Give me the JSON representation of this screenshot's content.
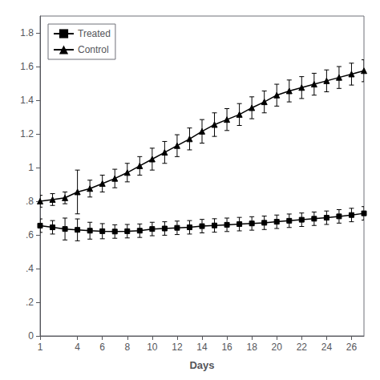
{
  "chart_data": {
    "type": "line",
    "xlabel": "Days",
    "x": [
      1,
      2,
      3,
      4,
      5,
      6,
      7,
      8,
      9,
      10,
      11,
      12,
      13,
      14,
      15,
      16,
      17,
      18,
      19,
      20,
      21,
      22,
      23,
      24,
      25,
      26,
      27
    ],
    "series": [
      {
        "name": "Treated",
        "color": "#000000",
        "marker": "square",
        "values": [
          0.655,
          0.645,
          0.635,
          0.63,
          0.625,
          0.622,
          0.62,
          0.622,
          0.625,
          0.635,
          0.638,
          0.642,
          0.645,
          0.652,
          0.656,
          0.66,
          0.664,
          0.668,
          0.672,
          0.678,
          0.684,
          0.69,
          0.696,
          0.702,
          0.71,
          0.718,
          0.728
        ],
        "error": [
          0.04,
          0.04,
          0.065,
          0.065,
          0.05,
          0.045,
          0.04,
          0.04,
          0.04,
          0.04,
          0.04,
          0.04,
          0.04,
          0.04,
          0.04,
          0.04,
          0.04,
          0.04,
          0.04,
          0.04,
          0.04,
          0.04,
          0.04,
          0.04,
          0.04,
          0.04,
          0.04
        ]
      },
      {
        "name": "Control",
        "color": "#000000",
        "marker": "triangle",
        "values": [
          0.8,
          0.81,
          0.82,
          0.855,
          0.875,
          0.905,
          0.935,
          0.97,
          1.01,
          1.05,
          1.09,
          1.13,
          1.17,
          1.215,
          1.255,
          1.285,
          1.315,
          1.355,
          1.39,
          1.43,
          1.455,
          1.475,
          1.495,
          1.515,
          1.535,
          1.555,
          1.575
        ],
        "error": [
          0.035,
          0.035,
          0.035,
          0.13,
          0.05,
          0.05,
          0.055,
          0.055,
          0.055,
          0.065,
          0.065,
          0.065,
          0.065,
          0.07,
          0.07,
          0.065,
          0.065,
          0.065,
          0.065,
          0.065,
          0.065,
          0.065,
          0.065,
          0.065,
          0.065,
          0.065,
          0.065
        ]
      }
    ],
    "xlim": [
      1,
      27
    ],
    "xticks": [
      1,
      4,
      6,
      8,
      10,
      12,
      14,
      16,
      18,
      20,
      22,
      24,
      26
    ],
    "ylim": [
      0,
      1.9
    ],
    "yticks": [
      0,
      {
        "value": 0.2,
        "label": ".2"
      },
      {
        "value": 0.4,
        "label": ".4"
      },
      {
        "value": 0.6,
        "label": ".6"
      },
      {
        "value": 0.8,
        "label": ".8"
      },
      1,
      1.2,
      1.4,
      1.6,
      1.8
    ],
    "grid": false,
    "legend": "upper left"
  }
}
